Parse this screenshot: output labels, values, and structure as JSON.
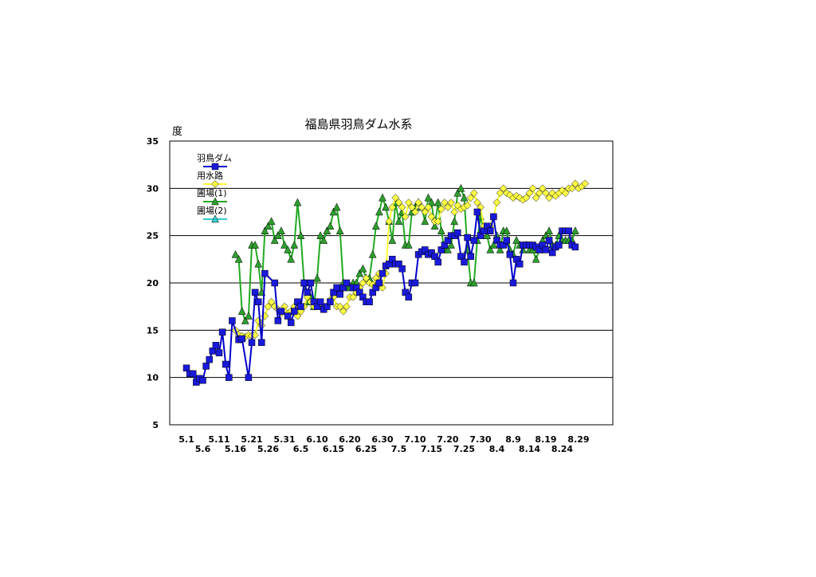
{
  "chart_data": {
    "type": "line",
    "title": "福島県羽鳥ダム水系",
    "ylabel": "度",
    "ylim": [
      5,
      35
    ],
    "yticks": [
      5,
      10,
      15,
      20,
      25,
      30,
      35
    ],
    "grid": true,
    "legend_position": "top-left",
    "x_start": "5.1",
    "x_end": "8.31",
    "x_ticks_upper": [
      "5.1",
      "5.11",
      "5.21",
      "5.31",
      "6.10",
      "6.20",
      "6.30",
      "7.10",
      "7.20",
      "7.30",
      "8.9",
      "8.19",
      "8.29"
    ],
    "x_ticks_lower": [
      "5.6",
      "5.16",
      "5.26",
      "6.5",
      "6.15",
      "6.25",
      "7.5",
      "7.15",
      "7.25",
      "8.4",
      "8.14",
      "8.24"
    ],
    "series": [
      {
        "name": "羽鳥ダム",
        "color": "#0000cc",
        "marker": "square",
        "marker_fill": "#1a1adb",
        "start_day": 0,
        "values": [
          11.0,
          10.4,
          10.4,
          9.5,
          9.9,
          9.7,
          11.2,
          11.9,
          12.8,
          13.4,
          12.6,
          14.8,
          11.4,
          10.0,
          16.0,
          null,
          14.0,
          14.1,
          null,
          10.0,
          13.7,
          19.0,
          18.0,
          13.7,
          21.0,
          null,
          null,
          20.0,
          16.0,
          17.0,
          null,
          16.5,
          15.8,
          17.0,
          18.0,
          17.5,
          20.0,
          19.0,
          20.0,
          18.0,
          17.5,
          18.0,
          17.2,
          17.5,
          18.0,
          19.0,
          19.5,
          18.8,
          19.5,
          20.0,
          null,
          19.5,
          19.5,
          19.0,
          18.5,
          18.0,
          18.0,
          19.0,
          19.5,
          20.0,
          21.0,
          21.8,
          22.0,
          22.5,
          22.0,
          22.0,
          21.5,
          19.0,
          18.5,
          20.0,
          20.0,
          23.0,
          23.3,
          23.5,
          23.0,
          23.2,
          22.8,
          22.2,
          23.5,
          24.0,
          24.5,
          25.0,
          25.0,
          25.3,
          22.8,
          22.2,
          24.8,
          22.8,
          24.5,
          27.5,
          25.0,
          25.5,
          26.0,
          25.5,
          27.0,
          24.5,
          24.0,
          24.0,
          24.5,
          23.0,
          20.0,
          22.5,
          22.0,
          24.0,
          24.0,
          24.0,
          24.0,
          23.8,
          23.5,
          24.0,
          23.5,
          24.5,
          23.2,
          23.8,
          24.0,
          25.5,
          25.5,
          25.5,
          24.0,
          23.8
        ],
        "gaps_as_breaks": false
      },
      {
        "name": "用水路",
        "color": "#ffff33",
        "marker": "diamond",
        "marker_fill": "#ffff44",
        "start_day": 15,
        "values": [
          15.0,
          14.5,
          14.4,
          14.3,
          14.5,
          14.4,
          14.5,
          16.0,
          15.5,
          16.5,
          17.5,
          18.0,
          17.5,
          17.2,
          16.8,
          17.5,
          16.8,
          17.0,
          17.5,
          16.5,
          17.0,
          17.5,
          18.5,
          18.0,
          17.5,
          17.8,
          17.5,
          17.2,
          17.5,
          18.2,
          18.5,
          17.5,
          17.5,
          17.0,
          17.5,
          18.5,
          18.5,
          19.0,
          19.5,
          20.0,
          20.5,
          20.0,
          19.8,
          20.5,
          21.0,
          19.5,
          21.0,
          26.5,
          28.0,
          29.0,
          28.5,
          28.0,
          27.0,
          28.5,
          28.0,
          27.5,
          28.5,
          28.0,
          27.5,
          28.0,
          27.0,
          26.5,
          26.5,
          27.8,
          28.5,
          28.0,
          28.5,
          27.5,
          28.2,
          27.8,
          28.0,
          28.2,
          29.0,
          29.5,
          28.5,
          28.0,
          26.0,
          25.5,
          26.0,
          27.0,
          28.5,
          29.5,
          30.0,
          29.5,
          29.3,
          29.0,
          29.2,
          29.0,
          28.8,
          29.0,
          29.5,
          30.0,
          29.0,
          29.5,
          30.0,
          29.5,
          29.0,
          29.5,
          29.2,
          29.5,
          29.8,
          29.5,
          30.0,
          30.0,
          30.5,
          30.0,
          30.2,
          30.5
        ]
      },
      {
        "name": "圃場(1)",
        "color": "#22aa22",
        "marker": "triangle",
        "marker_fill": "#2e9e2e",
        "start_day": 15,
        "values": [
          23.0,
          22.5,
          17.0,
          16.0,
          16.5,
          24.0,
          24.0,
          22.0,
          19.0,
          25.5,
          26.0,
          26.5,
          24.5,
          25.0,
          25.5,
          24.0,
          23.5,
          22.5,
          24.0,
          28.5,
          25.0,
          20.0,
          18.0,
          18.5,
          17.5,
          20.5,
          25.0,
          24.5,
          25.5,
          26.0,
          27.5,
          28.0,
          25.5,
          20.0,
          19.5,
          19.5,
          20.0,
          20.0,
          21.0,
          21.5,
          20.5,
          20.5,
          23.0,
          26.0,
          27.5,
          29.0,
          28.0,
          26.5,
          24.5,
          28.5,
          26.5,
          27.5,
          24.0,
          24.0,
          27.5,
          28.0,
          28.5,
          28.0,
          26.5,
          29.0,
          28.5,
          26.0,
          28.5,
          25.5,
          23.5,
          23.5,
          24.0,
          26.5,
          29.5,
          30.0,
          29.0,
          23.5,
          20.0,
          20.0,
          24.5,
          27.0,
          25.5,
          25.0,
          23.5,
          24.0,
          25.0,
          23.5,
          25.5,
          25.5,
          23.5,
          23.0,
          24.5,
          24.0,
          23.5,
          24.0,
          23.5,
          23.5,
          22.5,
          23.5,
          24.5,
          25.0,
          25.5,
          24.0,
          24.0,
          25.0,
          24.5,
          24.5,
          24.5,
          24.5,
          25.5
        ]
      },
      {
        "name": "圃場(2)",
        "color": "#33cccc",
        "marker": "triangle",
        "marker_fill": "#33cccc",
        "start_day": 0,
        "values": []
      }
    ]
  }
}
